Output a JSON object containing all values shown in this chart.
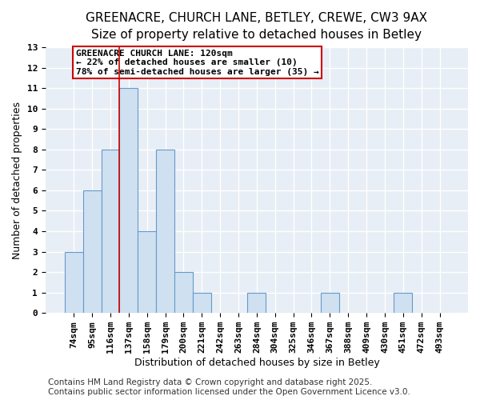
{
  "title1": "GREENACRE, CHURCH LANE, BETLEY, CREWE, CW3 9AX",
  "title2": "Size of property relative to detached houses in Betley",
  "xlabel": "Distribution of detached houses by size in Betley",
  "ylabel": "Number of detached properties",
  "categories": [
    "74sqm",
    "95sqm",
    "116sqm",
    "137sqm",
    "158sqm",
    "179sqm",
    "200sqm",
    "221sqm",
    "242sqm",
    "263sqm",
    "284sqm",
    "304sqm",
    "325sqm",
    "346sqm",
    "367sqm",
    "388sqm",
    "409sqm",
    "430sqm",
    "451sqm",
    "472sqm",
    "493sqm"
  ],
  "values": [
    3,
    6,
    8,
    11,
    4,
    8,
    2,
    1,
    0,
    0,
    1,
    0,
    0,
    0,
    1,
    0,
    0,
    0,
    1,
    0,
    0
  ],
  "bar_color": "#cfe0f0",
  "bar_edge_color": "#6699cc",
  "vline_x": 2.5,
  "vline_color": "#cc0000",
  "annotation_text": "GREENACRE CHURCH LANE: 120sqm\n← 22% of detached houses are smaller (10)\n78% of semi-detached houses are larger (35) →",
  "annotation_box_edge": "#cc0000",
  "ylim": [
    0,
    13
  ],
  "yticks": [
    0,
    1,
    2,
    3,
    4,
    5,
    6,
    7,
    8,
    9,
    10,
    11,
    12,
    13
  ],
  "footer": "Contains HM Land Registry data © Crown copyright and database right 2025.\nContains public sector information licensed under the Open Government Licence v3.0.",
  "bg_color": "#ffffff",
  "plot_bg_color": "#e8eef5",
  "grid_color": "#ffffff",
  "title_fontsize": 11,
  "subtitle_fontsize": 10,
  "axis_fontsize": 9,
  "tick_fontsize": 8,
  "footer_fontsize": 7.5
}
